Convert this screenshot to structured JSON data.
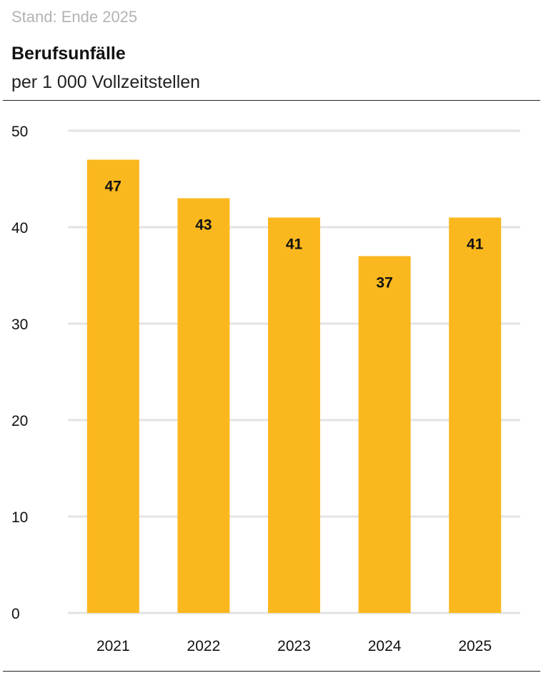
{
  "header": {
    "stand": "Stand: Ende 2025",
    "title": "Berufsunfälle",
    "subtitle": "per 1 000 Vollzeitstellen"
  },
  "colors": {
    "bar": "#FBB81E",
    "grid": "#e3e3e3",
    "stand_text": "#b3b3b3",
    "rule": "#222222"
  },
  "chart_data": {
    "type": "bar",
    "title": "Berufsunfälle",
    "subtitle": "per 1 000 Vollzeitstellen",
    "categories": [
      "2021",
      "2022",
      "2023",
      "2024",
      "2025"
    ],
    "values": [
      47,
      43,
      41,
      37,
      41
    ],
    "data_labels": [
      "47",
      "43",
      "41",
      "37",
      "41"
    ],
    "xlabel": "",
    "ylabel": "",
    "ylim": [
      0,
      50
    ],
    "yticks": [
      "0",
      "10",
      "20",
      "30",
      "40",
      "50"
    ],
    "grid": true,
    "legend": "none"
  }
}
